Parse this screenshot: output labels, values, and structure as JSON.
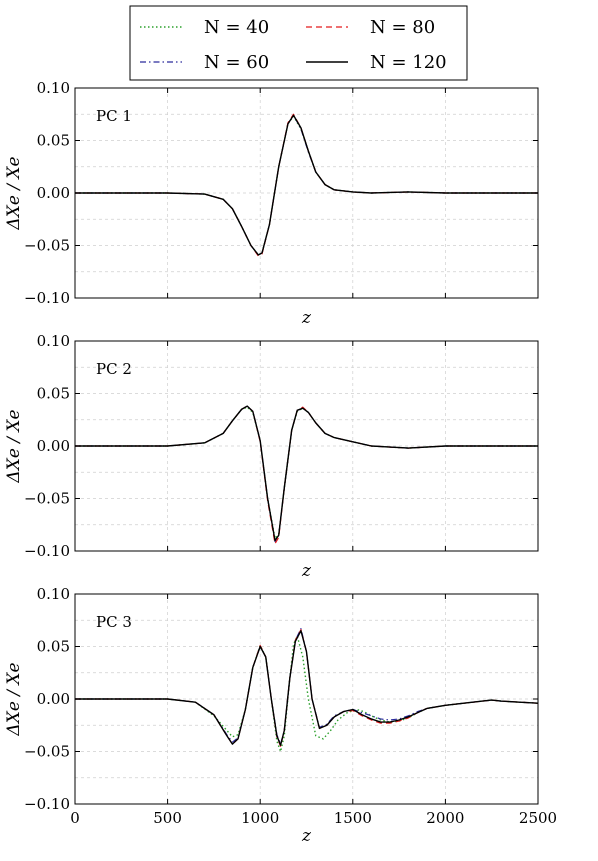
{
  "chart_data": {
    "type": "line",
    "legend": {
      "placement": "top",
      "entries": [
        {
          "label": "N = 40",
          "color": "#2ca02c",
          "dash": "dotted"
        },
        {
          "label": "N = 80",
          "color": "#e41a1c",
          "dash": "dashed"
        },
        {
          "label": "N = 60",
          "color": "#2b2b9c",
          "dash": "dashdot"
        },
        {
          "label": "N = 120",
          "color": "#000000",
          "dash": "solid"
        }
      ]
    },
    "xlabel": "z",
    "ylabel": "ΔXe / Xe",
    "xlim": [
      0,
      2500
    ],
    "ylim": [
      -0.1,
      0.1
    ],
    "xticks": [
      "0",
      "500",
      "1000",
      "1500",
      "2000",
      "2500"
    ],
    "yticks": [
      "0.10",
      "0.05",
      "0.00",
      "−0.05",
      "−0.10"
    ],
    "grid": true,
    "panels": [
      {
        "label": "PC 1",
        "series": [
          {
            "name": "N = 120",
            "x": [
              0,
              500,
              700,
              800,
              850,
              900,
              950,
              990,
              1010,
              1050,
              1100,
              1150,
              1180,
              1220,
              1260,
              1300,
              1350,
              1400,
              1500,
              1600,
              1800,
              2000,
              2500
            ],
            "y": [
              0,
              0,
              -0.001,
              -0.006,
              -0.015,
              -0.032,
              -0.05,
              -0.059,
              -0.057,
              -0.03,
              0.025,
              0.066,
              0.074,
              0.062,
              0.04,
              0.02,
              0.008,
              0.003,
              0.001,
              0,
              0.001,
              0,
              0
            ]
          },
          {
            "name": "N = 80",
            "x": [
              0,
              500,
              700,
              800,
              850,
              900,
              950,
              990,
              1010,
              1050,
              1100,
              1150,
              1180,
              1220,
              1260,
              1300,
              1350,
              1400,
              1500,
              1600,
              1800,
              2000,
              2500
            ],
            "y": [
              0,
              0,
              -0.001,
              -0.006,
              -0.015,
              -0.032,
              -0.05,
              -0.06,
              -0.058,
              -0.03,
              0.025,
              0.067,
              0.075,
              0.062,
              0.04,
              0.02,
              0.008,
              0.003,
              0.001,
              0,
              0.001,
              0,
              0
            ]
          },
          {
            "name": "N = 60",
            "x": [
              0,
              500,
              700,
              800,
              850,
              900,
              950,
              990,
              1010,
              1050,
              1100,
              1150,
              1180,
              1220,
              1260,
              1300,
              1350,
              1400,
              1500,
              1600,
              1800,
              2000,
              2500
            ],
            "y": [
              0,
              0,
              -0.001,
              -0.006,
              -0.015,
              -0.032,
              -0.05,
              -0.059,
              -0.057,
              -0.03,
              0.025,
              0.066,
              0.074,
              0.061,
              0.039,
              0.02,
              0.008,
              0.003,
              0.001,
              0,
              0.001,
              0,
              0
            ]
          },
          {
            "name": "N = 40",
            "x": [
              0,
              500,
              700,
              800,
              850,
              900,
              950,
              990,
              1010,
              1050,
              1100,
              1150,
              1180,
              1220,
              1260,
              1300,
              1350,
              1400,
              1500,
              1600,
              1800,
              2000,
              2500
            ],
            "y": [
              0,
              0,
              -0.001,
              -0.006,
              -0.015,
              -0.032,
              -0.05,
              -0.059,
              -0.057,
              -0.03,
              0.025,
              0.066,
              0.073,
              0.061,
              0.04,
              0.02,
              0.008,
              0.003,
              0.001,
              0,
              0.001,
              0,
              0
            ]
          }
        ]
      },
      {
        "label": "PC 2",
        "series": [
          {
            "name": "N = 120",
            "x": [
              0,
              500,
              700,
              800,
              850,
              900,
              930,
              960,
              1000,
              1040,
              1080,
              1100,
              1130,
              1170,
              1200,
              1230,
              1260,
              1300,
              1350,
              1400,
              1500,
              1600,
              1800,
              2000,
              2500
            ],
            "y": [
              0,
              0,
              0.003,
              0.012,
              0.024,
              0.035,
              0.038,
              0.033,
              0.005,
              -0.05,
              -0.09,
              -0.085,
              -0.04,
              0.015,
              0.034,
              0.036,
              0.032,
              0.022,
              0.012,
              0.008,
              0.004,
              0,
              -0.002,
              0,
              0
            ]
          },
          {
            "name": "N = 80",
            "x": [
              0,
              500,
              700,
              800,
              850,
              900,
              930,
              960,
              1000,
              1040,
              1080,
              1100,
              1130,
              1170,
              1200,
              1230,
              1260,
              1300,
              1350,
              1400,
              1500,
              1600,
              1800,
              2000,
              2500
            ],
            "y": [
              0,
              0,
              0.003,
              0.012,
              0.024,
              0.035,
              0.038,
              0.033,
              0.004,
              -0.052,
              -0.093,
              -0.087,
              -0.04,
              0.015,
              0.034,
              0.037,
              0.032,
              0.022,
              0.012,
              0.008,
              0.004,
              0,
              -0.002,
              0,
              0
            ]
          },
          {
            "name": "N = 60",
            "x": [
              0,
              500,
              700,
              800,
              850,
              900,
              930,
              960,
              1000,
              1040,
              1080,
              1100,
              1130,
              1170,
              1200,
              1230,
              1260,
              1300,
              1350,
              1400,
              1500,
              1600,
              1800,
              2000,
              2500
            ],
            "y": [
              0,
              0,
              0.003,
              0.012,
              0.024,
              0.035,
              0.038,
              0.033,
              0.005,
              -0.05,
              -0.091,
              -0.085,
              -0.04,
              0.015,
              0.034,
              0.036,
              0.032,
              0.022,
              0.012,
              0.008,
              0.004,
              0,
              -0.002,
              0,
              0
            ]
          },
          {
            "name": "N = 40",
            "x": [
              0,
              500,
              700,
              800,
              850,
              900,
              930,
              960,
              1000,
              1040,
              1080,
              1100,
              1130,
              1170,
              1200,
              1230,
              1260,
              1300,
              1350,
              1400,
              1500,
              1600,
              1800,
              2000,
              2500
            ],
            "y": [
              0,
              0,
              0.003,
              0.012,
              0.024,
              0.035,
              0.037,
              0.032,
              0.005,
              -0.05,
              -0.088,
              -0.084,
              -0.04,
              0.015,
              0.033,
              0.036,
              0.032,
              0.022,
              0.012,
              0.008,
              0.004,
              0,
              -0.002,
              0,
              0
            ]
          }
        ]
      },
      {
        "label": "PC 3",
        "series": [
          {
            "name": "N = 120",
            "x": [
              0,
              500,
              650,
              750,
              820,
              850,
              880,
              920,
              960,
              1000,
              1030,
              1060,
              1090,
              1110,
              1130,
              1160,
              1190,
              1220,
              1250,
              1280,
              1320,
              1360,
              1400,
              1450,
              1500,
              1550,
              1600,
              1650,
              1700,
              1750,
              1800,
              1850,
              1900,
              2000,
              2100,
              2200,
              2250,
              2300,
              2400,
              2500
            ],
            "y": [
              0,
              0,
              -0.003,
              -0.015,
              -0.035,
              -0.043,
              -0.038,
              -0.01,
              0.03,
              0.05,
              0.04,
              0.0,
              -0.035,
              -0.044,
              -0.03,
              0.02,
              0.055,
              0.065,
              0.045,
              0.0,
              -0.028,
              -0.025,
              -0.017,
              -0.012,
              -0.01,
              -0.015,
              -0.019,
              -0.022,
              -0.022,
              -0.02,
              -0.017,
              -0.013,
              -0.009,
              -0.006,
              -0.004,
              -0.002,
              -0.001,
              -0.002,
              -0.003,
              -0.004
            ]
          },
          {
            "name": "N = 80",
            "x": [
              0,
              500,
              650,
              750,
              820,
              850,
              880,
              920,
              960,
              1000,
              1030,
              1060,
              1090,
              1110,
              1130,
              1160,
              1190,
              1220,
              1250,
              1280,
              1320,
              1360,
              1400,
              1450,
              1500,
              1550,
              1600,
              1650,
              1700,
              1750,
              1800,
              1850,
              1900,
              2000,
              2100,
              2200,
              2250,
              2300,
              2400,
              2500
            ],
            "y": [
              0,
              0,
              -0.003,
              -0.015,
              -0.035,
              -0.043,
              -0.038,
              -0.01,
              0.03,
              0.051,
              0.04,
              0.0,
              -0.036,
              -0.045,
              -0.03,
              0.02,
              0.056,
              0.066,
              0.045,
              0.0,
              -0.028,
              -0.025,
              -0.017,
              -0.012,
              -0.011,
              -0.016,
              -0.02,
              -0.023,
              -0.023,
              -0.021,
              -0.018,
              -0.013,
              -0.009,
              -0.006,
              -0.004,
              -0.002,
              -0.001,
              -0.002,
              -0.003,
              -0.004
            ]
          },
          {
            "name": "N = 60",
            "x": [
              0,
              500,
              650,
              750,
              820,
              850,
              880,
              920,
              960,
              1000,
              1030,
              1060,
              1090,
              1110,
              1130,
              1160,
              1190,
              1220,
              1250,
              1280,
              1320,
              1360,
              1400,
              1450,
              1500,
              1550,
              1600,
              1650,
              1700,
              1750,
              1800,
              1850,
              1900,
              2000,
              2100,
              2200,
              2250,
              2300,
              2400,
              2500
            ],
            "y": [
              0,
              0,
              -0.003,
              -0.015,
              -0.034,
              -0.041,
              -0.037,
              -0.01,
              0.03,
              0.05,
              0.04,
              0.0,
              -0.034,
              -0.043,
              -0.03,
              0.02,
              0.056,
              0.067,
              0.045,
              0.0,
              -0.027,
              -0.024,
              -0.016,
              -0.012,
              -0.01,
              -0.013,
              -0.016,
              -0.019,
              -0.02,
              -0.019,
              -0.016,
              -0.012,
              -0.009,
              -0.006,
              -0.004,
              -0.002,
              -0.001,
              -0.002,
              -0.003,
              -0.004
            ]
          },
          {
            "name": "N = 40",
            "x": [
              0,
              500,
              650,
              750,
              820,
              850,
              880,
              920,
              960,
              1000,
              1030,
              1060,
              1090,
              1110,
              1130,
              1160,
              1180,
              1200,
              1230,
              1260,
              1300,
              1340,
              1380,
              1420,
              1470,
              1520,
              1560,
              1600,
              1650,
              1700,
              1750,
              1800,
              1850,
              1900,
              2000,
              2100,
              2200,
              2250,
              2300,
              2400,
              2500
            ],
            "y": [
              0,
              0,
              -0.003,
              -0.016,
              -0.03,
              -0.036,
              -0.034,
              -0.01,
              0.03,
              0.051,
              0.04,
              0.0,
              -0.04,
              -0.05,
              -0.035,
              0.02,
              0.052,
              0.06,
              0.04,
              0.0,
              -0.035,
              -0.038,
              -0.03,
              -0.02,
              -0.013,
              -0.01,
              -0.012,
              -0.016,
              -0.02,
              -0.022,
              -0.021,
              -0.018,
              -0.013,
              -0.009,
              -0.006,
              -0.004,
              -0.002,
              -0.001,
              -0.002,
              -0.003,
              -0.004
            ]
          }
        ]
      }
    ]
  }
}
